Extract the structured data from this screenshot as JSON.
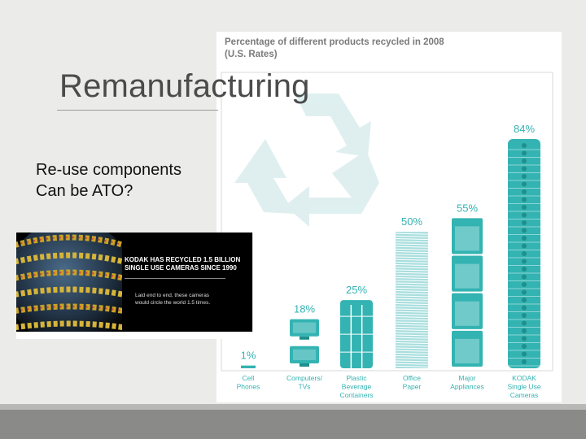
{
  "slide": {
    "title": "Remanufacturing",
    "bullets": [
      "Re-use components",
      "Can be ATO?"
    ]
  },
  "kodak_image": {
    "headline_line1": "KODAK HAS RECYCLED 1.5 BILLION",
    "headline_line2": "SINGLE USE CAMERAS SINCE 1990",
    "sub_line1": "Laid end to end, these cameras",
    "sub_line2": "would circle the world 1.5 times."
  },
  "colors": {
    "teal": "#33b3b2",
    "teal_dark": "#1f8f8e",
    "teal_light": "#a9dede",
    "title_gray": "#4b4b4b",
    "chart_title": "#7a7a7a",
    "background": "#ebebe9"
  },
  "chart_data": {
    "type": "bar",
    "title_line1": "Percentage of different products recycled in 2008",
    "title_line2": "(U.S. Rates)",
    "categories": [
      [
        "Cell",
        "Phones"
      ],
      [
        "Computers/",
        "TVs"
      ],
      [
        "Plastic",
        "Beverage",
        "Containers"
      ],
      [
        "Office",
        "Paper"
      ],
      [
        "Major",
        "Appliances"
      ],
      [
        "KODAK",
        "Single Use",
        "Cameras"
      ]
    ],
    "values": [
      1,
      18,
      25,
      50,
      55,
      84
    ],
    "value_labels": [
      "1%",
      "18%",
      "25%",
      "50%",
      "55%",
      "84%"
    ],
    "ylim": [
      0,
      90
    ],
    "xlabel": "",
    "ylabel": "",
    "grid": false,
    "background_icon": "recycle-icon"
  }
}
